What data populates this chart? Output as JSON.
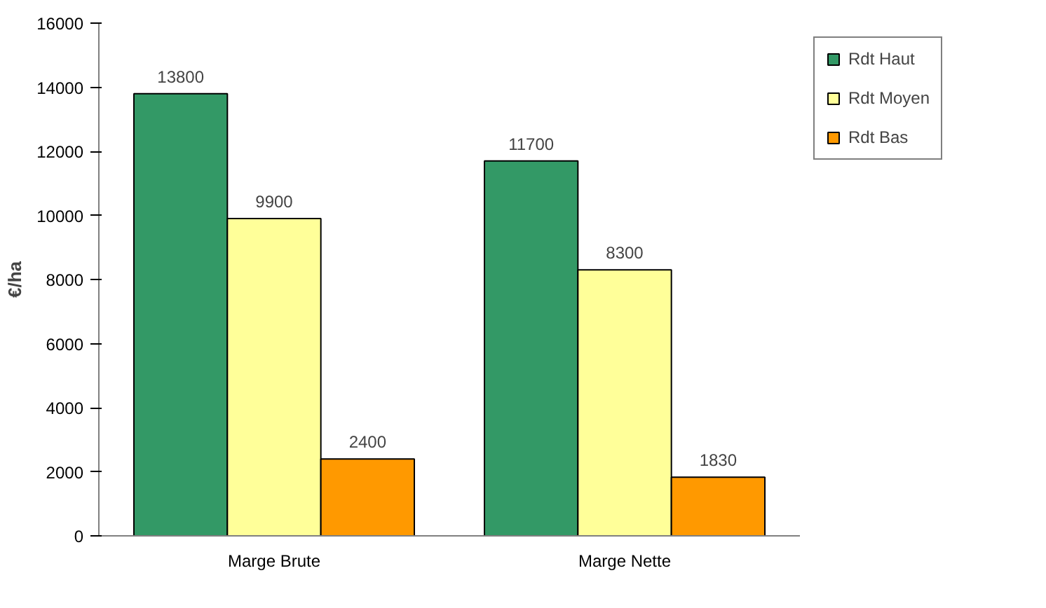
{
  "chart_data": {
    "type": "bar",
    "ylabel": "€/ha",
    "categories": [
      "Marge Brute",
      "Marge Nette"
    ],
    "series": [
      {
        "name": "Rdt Haut",
        "color": "#339966",
        "values": [
          13800,
          11700
        ]
      },
      {
        "name": "Rdt Moyen",
        "color": "#ffff99",
        "values": [
          9900,
          8300
        ]
      },
      {
        "name": "Rdt Bas",
        "color": "#ff9900",
        "values": [
          2400,
          1830
        ]
      }
    ],
    "ylim": [
      0,
      16000
    ],
    "yticks": [
      0,
      2000,
      4000,
      6000,
      8000,
      10000,
      12000,
      14000,
      16000
    ],
    "grid": false,
    "legend": "right",
    "data_labels": true
  }
}
